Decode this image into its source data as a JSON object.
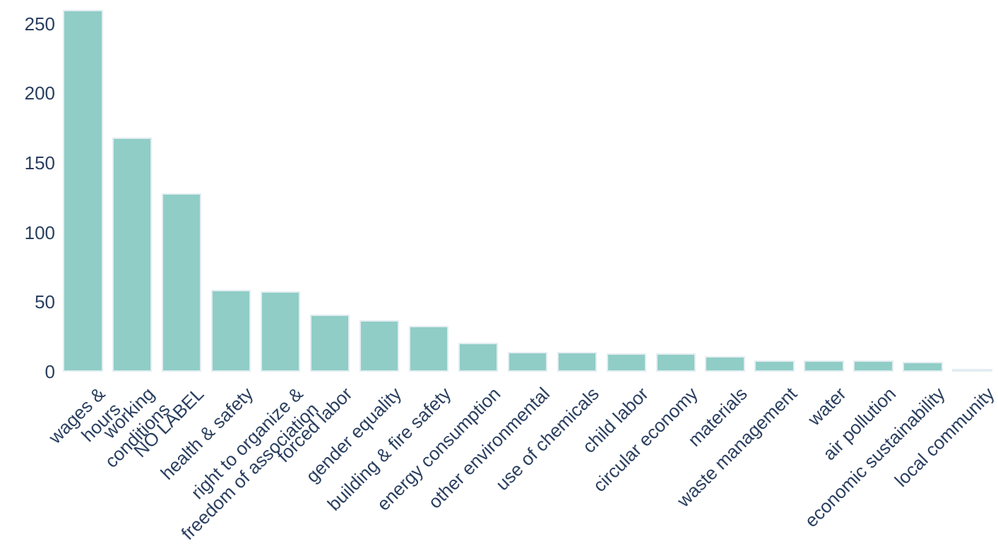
{
  "chart_data": {
    "type": "bar",
    "title": "",
    "xlabel": "",
    "ylabel": "",
    "categories": [
      "wages & hours",
      "working conditions",
      "NO LABEL",
      "health & safety",
      "right to organize &\nfreedom of association",
      "forced labor",
      "gender equality",
      "building & fire safety",
      "energy consumption",
      "other environmental",
      "use of chemicals",
      "child labor",
      "circular economy",
      "materials",
      "waste management",
      "water",
      "air pollution",
      "economic sustainability",
      "local community"
    ],
    "values": [
      260,
      168,
      128,
      59,
      58,
      41,
      37,
      33,
      21,
      14,
      14,
      13,
      13,
      11,
      8,
      8,
      8,
      7,
      2
    ],
    "yticks": [
      0,
      50,
      100,
      150,
      200,
      250
    ],
    "ylim": [
      0,
      267
    ],
    "xtick_rotation": 45,
    "grid": false,
    "legend": false,
    "colors": {
      "bar_fill": "#8fcdc6",
      "bar_edge": "#e2edf1",
      "text": "#2a3f5f",
      "background": "#ffffff"
    }
  }
}
